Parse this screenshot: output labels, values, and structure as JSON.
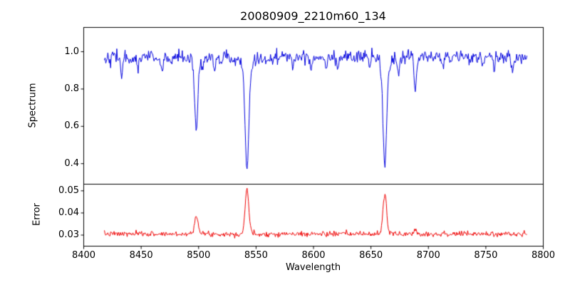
{
  "chart_data": [
    {
      "panel": "spectrum",
      "type": "line",
      "title": "20080909_2210m60_134",
      "ylabel": "Spectrum",
      "color": "#0000dd",
      "xlim": [
        8400,
        8800
      ],
      "ylim": [
        0.29,
        1.13
      ],
      "yticks": [
        0.4,
        0.6,
        0.8,
        1.0
      ],
      "ytick_labels": [
        "0.4",
        "0.6",
        "0.8",
        "1.0"
      ],
      "x_start": 8418,
      "x_end": 8786,
      "x_step": 0.6,
      "continuum": 0.972,
      "noise_sigma": 0.018,
      "absorption_lines": [
        {
          "center": 8498.0,
          "depth": 0.36,
          "sigma": 1.3
        },
        {
          "center": 8498.0,
          "depth": 0.05,
          "sigma": 3.5
        },
        {
          "center": 8542.1,
          "depth": 0.55,
          "sigma": 1.6
        },
        {
          "center": 8542.1,
          "depth": 0.07,
          "sigma": 4.5
        },
        {
          "center": 8662.1,
          "depth": 0.54,
          "sigma": 1.5
        },
        {
          "center": 8662.1,
          "depth": 0.07,
          "sigma": 4.2
        },
        {
          "center": 8433.0,
          "depth": 0.1,
          "sigma": 0.9
        },
        {
          "center": 8440.0,
          "depth": 0.05,
          "sigma": 0.8
        },
        {
          "center": 8447.0,
          "depth": 0.06,
          "sigma": 0.8
        },
        {
          "center": 8468.0,
          "depth": 0.09,
          "sigma": 1.0
        },
        {
          "center": 8476.0,
          "depth": 0.05,
          "sigma": 0.8
        },
        {
          "center": 8504.0,
          "depth": 0.05,
          "sigma": 0.8
        },
        {
          "center": 8514.0,
          "depth": 0.09,
          "sigma": 0.9
        },
        {
          "center": 8519.0,
          "depth": 0.05,
          "sigma": 0.8
        },
        {
          "center": 8531.0,
          "depth": 0.04,
          "sigma": 0.8
        },
        {
          "center": 8556.0,
          "depth": 0.04,
          "sigma": 0.8
        },
        {
          "center": 8582.0,
          "depth": 0.05,
          "sigma": 0.9
        },
        {
          "center": 8598.0,
          "depth": 0.06,
          "sigma": 0.9
        },
        {
          "center": 8611.0,
          "depth": 0.04,
          "sigma": 0.8
        },
        {
          "center": 8621.0,
          "depth": 0.05,
          "sigma": 0.9
        },
        {
          "center": 8648.0,
          "depth": 0.04,
          "sigma": 0.8
        },
        {
          "center": 8674.0,
          "depth": 0.08,
          "sigma": 0.9
        },
        {
          "center": 8688.6,
          "depth": 0.18,
          "sigma": 1.0
        },
        {
          "center": 8713.0,
          "depth": 0.05,
          "sigma": 0.9
        },
        {
          "center": 8736.0,
          "depth": 0.04,
          "sigma": 0.8
        },
        {
          "center": 8747.0,
          "depth": 0.04,
          "sigma": 0.8
        },
        {
          "center": 8757.0,
          "depth": 0.07,
          "sigma": 0.9
        },
        {
          "center": 8773.0,
          "depth": 0.08,
          "sigma": 0.9
        }
      ]
    },
    {
      "panel": "error",
      "type": "line",
      "ylabel": "Error",
      "xlabel": "Wavelength",
      "color": "#ee0000",
      "xlim": [
        8400,
        8800
      ],
      "ylim": [
        0.025,
        0.053
      ],
      "yticks": [
        0.03,
        0.04,
        0.05
      ],
      "ytick_labels": [
        "0.03",
        "0.04",
        "0.05"
      ],
      "xticks": [
        8400,
        8450,
        8500,
        8550,
        8600,
        8650,
        8700,
        8750,
        8800
      ],
      "xtick_labels": [
        "8400",
        "8450",
        "8500",
        "8550",
        "8600",
        "8650",
        "8700",
        "8750",
        "8800"
      ],
      "x_start": 8418,
      "x_end": 8786,
      "x_step": 0.6,
      "baseline": 0.0305,
      "noise_sigma": 0.0006,
      "peaks": [
        {
          "center": 8498.0,
          "height": 0.009,
          "sigma": 1.5
        },
        {
          "center": 8542.1,
          "height": 0.0205,
          "sigma": 1.6
        },
        {
          "center": 8662.1,
          "height": 0.018,
          "sigma": 1.6
        },
        {
          "center": 8688.6,
          "height": 0.002,
          "sigma": 1.2
        }
      ]
    }
  ]
}
